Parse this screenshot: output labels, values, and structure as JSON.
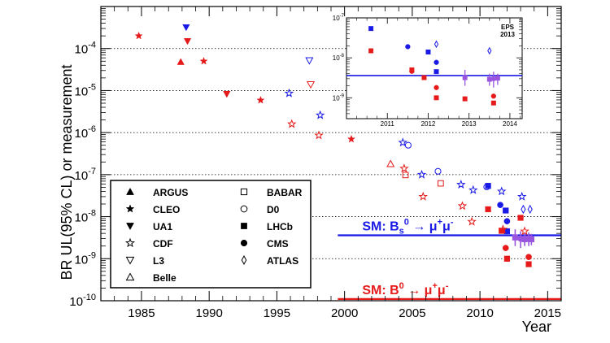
{
  "chart_data": {
    "type": "scatter",
    "xlabel": "Year",
    "ylabel": "BR UL(95% CL) or measurement",
    "xlim": [
      1982,
      2016
    ],
    "ylim": [
      1e-10,
      0.001
    ],
    "y_scale": "log",
    "x_ticks": [
      1985,
      1990,
      1995,
      2000,
      2005,
      2010,
      2015
    ],
    "y_ticks": [
      {
        "exp": "-10",
        "value": 1e-10
      },
      {
        "exp": "-9",
        "value": 1e-09
      },
      {
        "exp": "-8",
        "value": 1e-08
      },
      {
        "exp": "-7",
        "value": 1e-07
      },
      {
        "exp": "-6",
        "value": 1e-06
      },
      {
        "exp": "-5",
        "value": 1e-05
      },
      {
        "exp": "-4",
        "value": 0.0001
      }
    ],
    "colors": {
      "bs": "#1a1ae6",
      "b0": "#e61a1a",
      "atlas_purple": "#9955dd"
    },
    "sm_lines": [
      {
        "label_main": "SM: B",
        "label_sub": "s",
        "label_sup": "0",
        "label_rest": " → μ",
        "label_rest_sup": "+",
        "label_rest2": "μ",
        "label_rest2_sup": "-",
        "value": 3.6e-09,
        "x_start": 1999.5,
        "color": "#1a1ae6"
      },
      {
        "label_main": "SM: B",
        "label_sub": "",
        "label_sup": "0",
        "label_rest": " → μ",
        "label_rest_sup": "+",
        "label_rest2": "μ",
        "label_rest2_sup": "-",
        "value": 1.1e-10,
        "x_start": 1999.5,
        "color": "#e61a1a"
      }
    ],
    "points": [
      {
        "x": 1984.8,
        "y": 0.0002,
        "marker": "star-filled",
        "color": "#e61a1a"
      },
      {
        "x": 1987.9,
        "y": 4.8e-05,
        "marker": "triangle-up-filled",
        "color": "#e61a1a"
      },
      {
        "x": 1988.3,
        "y": 0.00032,
        "marker": "triangle-down-filled",
        "color": "#1a1ae6"
      },
      {
        "x": 1988.4,
        "y": 0.00015,
        "marker": "triangle-down-filled",
        "color": "#e61a1a"
      },
      {
        "x": 1989.6,
        "y": 5e-05,
        "marker": "star-filled",
        "color": "#e61a1a"
      },
      {
        "x": 1991.3,
        "y": 8.3e-06,
        "marker": "triangle-down-filled",
        "color": "#e61a1a"
      },
      {
        "x": 1993.8,
        "y": 5.9e-06,
        "marker": "star-filled",
        "color": "#e61a1a"
      },
      {
        "x": 1995.9,
        "y": 8.6e-06,
        "marker": "star-open",
        "color": "#1a1ae6"
      },
      {
        "x": 1996.1,
        "y": 1.6e-06,
        "marker": "star-open",
        "color": "#e61a1a"
      },
      {
        "x": 1997.4,
        "y": 5.2e-05,
        "marker": "triangle-down-open",
        "color": "#1a1ae6"
      },
      {
        "x": 1997.5,
        "y": 1.4e-05,
        "marker": "triangle-down-open",
        "color": "#e61a1a"
      },
      {
        "x": 1998.2,
        "y": 2.6e-06,
        "marker": "star-open",
        "color": "#1a1ae6"
      },
      {
        "x": 1998.1,
        "y": 8.6e-07,
        "marker": "star-open",
        "color": "#e61a1a"
      },
      {
        "x": 2000.5,
        "y": 7e-07,
        "marker": "star-filled",
        "color": "#e61a1a"
      },
      {
        "x": 2003.4,
        "y": 1.8e-07,
        "marker": "triangle-up-open",
        "color": "#e61a1a"
      },
      {
        "x": 2004.3,
        "y": 5.8e-07,
        "marker": "star-open",
        "color": "#1a1ae6"
      },
      {
        "x": 2004.4,
        "y": 1.4e-07,
        "marker": "star-open",
        "color": "#e61a1a"
      },
      {
        "x": 2004.7,
        "y": 5e-07,
        "marker": "circle-open",
        "color": "#1a1ae6"
      },
      {
        "x": 2004.5,
        "y": 9.8e-08,
        "marker": "square-open",
        "color": "#e61a1a"
      },
      {
        "x": 2005.7,
        "y": 1e-07,
        "marker": "star-open",
        "color": "#1a1ae6"
      },
      {
        "x": 2005.8,
        "y": 3e-08,
        "marker": "star-open",
        "color": "#e61a1a"
      },
      {
        "x": 2006.9,
        "y": 1.2e-07,
        "marker": "circle-open",
        "color": "#1a1ae6"
      },
      {
        "x": 2007.1,
        "y": 6.2e-08,
        "marker": "square-open",
        "color": "#e61a1a"
      },
      {
        "x": 2008.6,
        "y": 5.8e-08,
        "marker": "star-open",
        "color": "#1a1ae6"
      },
      {
        "x": 2008.7,
        "y": 1.8e-08,
        "marker": "star-open",
        "color": "#e61a1a"
      },
      {
        "x": 2009.5,
        "y": 4.3e-08,
        "marker": "star-open",
        "color": "#1a1ae6"
      },
      {
        "x": 2009.4,
        "y": 7.6e-09,
        "marker": "star-open",
        "color": "#e61a1a"
      },
      {
        "x": 2010.5,
        "y": 5.1e-08,
        "marker": "circle-open",
        "color": "#1a1ae6"
      },
      {
        "x": 2010.6,
        "y": 5.4e-08,
        "marker": "square-filled",
        "color": "#1a1ae6"
      },
      {
        "x": 2010.6,
        "y": 1.5e-08,
        "marker": "square-filled",
        "color": "#e61a1a"
      },
      {
        "x": 2011.6,
        "y": 4e-08,
        "marker": "star-open",
        "color": "#1a1ae6"
      },
      {
        "x": 2011.5,
        "y": 1.9e-08,
        "marker": "circle-filled",
        "color": "#1a1ae6"
      },
      {
        "x": 2011.9,
        "y": 1.4e-08,
        "marker": "square-filled",
        "color": "#1a1ae6"
      },
      {
        "x": 2012.0,
        "y": 7.8e-09,
        "marker": "circle-filled",
        "color": "#1a1ae6"
      },
      {
        "x": 2012.0,
        "y": 4.5e-09,
        "marker": "square-filled",
        "color": "#1a1ae6"
      },
      {
        "x": 2011.7,
        "y": 5e-09,
        "marker": "star-open",
        "color": "#e61a1a"
      },
      {
        "x": 2011.6,
        "y": 4.6e-09,
        "marker": "square-filled",
        "color": "#e61a1a"
      },
      {
        "x": 2011.9,
        "y": 1.8e-09,
        "marker": "circle-filled",
        "color": "#e61a1a"
      },
      {
        "x": 2012.0,
        "y": 1e-09,
        "marker": "square-filled",
        "color": "#e61a1a"
      },
      {
        "x": 2012.6,
        "y": 3.2e-09,
        "marker": "square-filled",
        "color": "#9955dd",
        "err": [
          2e-09,
          5e-09
        ]
      },
      {
        "x": 2013.0,
        "y": 9.4e-09,
        "marker": "square-filled",
        "color": "#e61a1a"
      },
      {
        "x": 2013.1,
        "y": 3e-08,
        "marker": "star-open",
        "color": "#1a1ae6"
      },
      {
        "x": 2013.2,
        "y": 1.5e-08,
        "marker": "diamond-open",
        "color": "#1a1ae6"
      },
      {
        "x": 2013.0,
        "y": 3e-09,
        "marker": "circle-filled",
        "color": "#9955dd",
        "err": [
          1.8e-09,
          4.5e-09
        ]
      },
      {
        "x": 2013.3,
        "y": 4.5e-09,
        "marker": "star-open",
        "color": "#e61a1a"
      },
      {
        "x": 2013.3,
        "y": 2.9e-09,
        "marker": "square-filled",
        "color": "#9955dd",
        "err": [
          2e-09,
          4e-09
        ]
      },
      {
        "x": 2013.6,
        "y": 3e-09,
        "marker": "square-filled",
        "color": "#9955dd",
        "err": [
          2e-09,
          4.2e-09
        ]
      },
      {
        "x": 2013.7,
        "y": 1.5e-08,
        "marker": "diamond-open",
        "color": "#1a1ae6"
      },
      {
        "x": 2013.8,
        "y": 2.9e-09,
        "marker": "square-filled",
        "color": "#9955dd",
        "err": [
          2.1e-09,
          3.9e-09
        ]
      },
      {
        "x": 2013.6,
        "y": 1.1e-09,
        "marker": "circle-filled",
        "color": "#e61a1a"
      },
      {
        "x": 2013.6,
        "y": 7.4e-10,
        "marker": "square-filled",
        "color": "#e61a1a"
      }
    ],
    "legend": {
      "placement": "lower-left",
      "entries": [
        {
          "label": "ARGUS",
          "marker": "triangle-up-filled"
        },
        {
          "label": "CLEO",
          "marker": "star-filled"
        },
        {
          "label": "UA1",
          "marker": "triangle-down-filled"
        },
        {
          "label": "CDF",
          "marker": "star-open"
        },
        {
          "label": "L3",
          "marker": "triangle-down-open"
        },
        {
          "label": "Belle",
          "marker": "triangle-up-open"
        },
        {
          "label": "BABAR",
          "marker": "square-open"
        },
        {
          "label": "D0",
          "marker": "circle-open"
        },
        {
          "label": "LHCb",
          "marker": "square-filled"
        },
        {
          "label": "CMS",
          "marker": "circle-filled"
        },
        {
          "label": "ATLAS",
          "marker": "diamond-open"
        }
      ]
    },
    "inset": {
      "annotation_lines": [
        "EPS",
        "2013"
      ],
      "xlim": [
        2010,
        2014.3
      ],
      "ylim": [
        3e-10,
        1e-07
      ],
      "y_scale": "log",
      "x_ticks": [
        2011,
        2012,
        2013,
        2014
      ],
      "y_ticks": [
        {
          "exp": "-9",
          "value": 1e-09
        },
        {
          "exp": "-8",
          "value": 1e-08
        },
        {
          "exp": "-7",
          "value": 1e-07
        }
      ],
      "sm_value": 3.6e-09,
      "points": [
        {
          "x": 2010.6,
          "y": 5.4e-08,
          "marker": "square-filled",
          "color": "#1a1ae6"
        },
        {
          "x": 2010.6,
          "y": 1.5e-08,
          "marker": "square-filled",
          "color": "#e61a1a"
        },
        {
          "x": 2011.5,
          "y": 1.9e-08,
          "marker": "circle-filled",
          "color": "#1a1ae6"
        },
        {
          "x": 2011.6,
          "y": 5e-09,
          "marker": "square-filled",
          "color": "#e61a1a"
        },
        {
          "x": 2011.6,
          "y": 4.6e-09,
          "marker": "circle-filled",
          "color": "#e61a1a"
        },
        {
          "x": 2011.9,
          "y": 3.2e-09,
          "marker": "square-filled",
          "color": "#e61a1a"
        },
        {
          "x": 2012.0,
          "y": 1.4e-08,
          "marker": "square-filled",
          "color": "#1a1ae6"
        },
        {
          "x": 2012.2,
          "y": 2.2e-08,
          "marker": "diamond-open",
          "color": "#1a1ae6"
        },
        {
          "x": 2012.2,
          "y": 7.7e-09,
          "marker": "circle-filled",
          "color": "#1a1ae6"
        },
        {
          "x": 2012.2,
          "y": 4.5e-09,
          "marker": "square-filled",
          "color": "#1a1ae6"
        },
        {
          "x": 2012.2,
          "y": 1.8e-09,
          "marker": "circle-filled",
          "color": "#e61a1a"
        },
        {
          "x": 2012.2,
          "y": 1e-09,
          "marker": "square-filled",
          "color": "#e61a1a"
        },
        {
          "x": 2012.9,
          "y": 3.2e-09,
          "marker": "square-filled",
          "color": "#9955dd",
          "err": [
            2e-09,
            5e-09
          ]
        },
        {
          "x": 2012.9,
          "y": 9.4e-10,
          "marker": "square-filled",
          "color": "#e61a1a"
        },
        {
          "x": 2013.5,
          "y": 1.5e-08,
          "marker": "diamond-open",
          "color": "#1a1ae6"
        },
        {
          "x": 2013.5,
          "y": 2.9e-09,
          "marker": "square-filled",
          "color": "#9955dd",
          "err": [
            2e-09,
            4e-09
          ]
        },
        {
          "x": 2013.6,
          "y": 3e-09,
          "marker": "circle-filled",
          "color": "#9955dd",
          "err": [
            1.8e-09,
            4.5e-09
          ]
        },
        {
          "x": 2013.7,
          "y": 3.1e-09,
          "marker": "square-filled",
          "color": "#9955dd",
          "err": [
            2.1e-09,
            4e-09
          ]
        },
        {
          "x": 2013.6,
          "y": 1.1e-09,
          "marker": "circle-filled",
          "color": "#e61a1a"
        },
        {
          "x": 2013.6,
          "y": 7.4e-10,
          "marker": "square-filled",
          "color": "#e61a1a"
        }
      ]
    }
  }
}
